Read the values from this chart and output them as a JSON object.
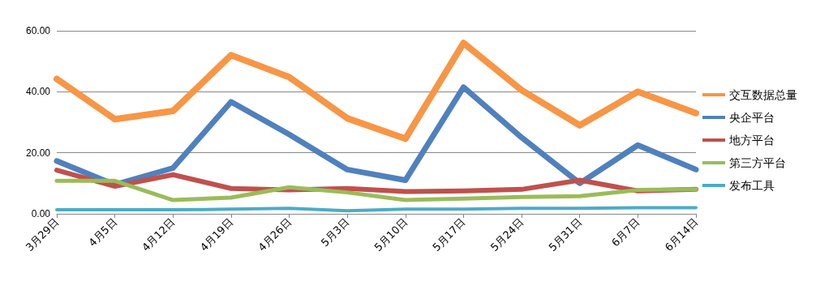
{
  "chart_data": {
    "type": "line",
    "categories": [
      "3月29日",
      "4月5日",
      "4月12日",
      "4月19日",
      "4月26日",
      "5月3日",
      "5月10日",
      "5月17日",
      "5月24日",
      "5月31日",
      "6月7日",
      "6月14日"
    ],
    "series": [
      {
        "name": "交互数据总量",
        "color": "#f79646",
        "values": [
          44.2,
          31,
          33.7,
          52,
          44.8,
          31.3,
          24.6,
          56,
          40.5,
          29,
          40,
          33
        ]
      },
      {
        "name": "央企平台",
        "color": "#4f81bd",
        "values": [
          17.3,
          9.5,
          15,
          36.7,
          26,
          14.5,
          11,
          41.5,
          25,
          10,
          22.5,
          14.5
        ]
      },
      {
        "name": "地方平台",
        "color": "#c0504d",
        "values": [
          14.3,
          9,
          12.8,
          8.3,
          7.8,
          8.3,
          7.3,
          7.5,
          8,
          11,
          7.5,
          8
        ]
      },
      {
        "name": "第三方平台",
        "color": "#9bbb59",
        "values": [
          10.8,
          10.8,
          4.5,
          5.3,
          8.7,
          7,
          4.5,
          5,
          5.5,
          5.8,
          7.8,
          8
        ]
      },
      {
        "name": "发布工具",
        "color": "#4bacc6",
        "values": [
          1.3,
          1.3,
          1.3,
          1.5,
          1.8,
          1,
          1.5,
          1.5,
          1.8,
          1.8,
          2,
          2
        ]
      }
    ],
    "ylim": [
      0,
      60
    ],
    "yticks": [
      {
        "value": 0,
        "label": "0.00"
      },
      {
        "value": 20,
        "label": "20.00"
      },
      {
        "value": 40,
        "label": "40.00"
      },
      {
        "value": 60,
        "label": "60.00"
      }
    ],
    "grid": "y",
    "legend": "right",
    "marker": "none",
    "line_style": "solid"
  }
}
